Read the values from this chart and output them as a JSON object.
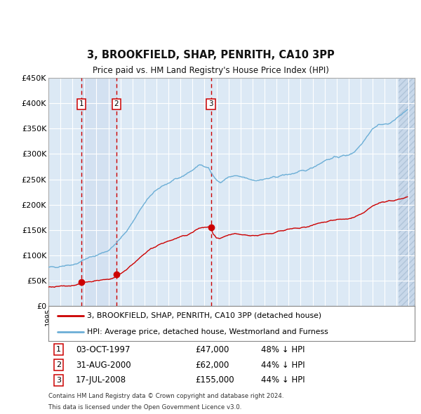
{
  "title": "3, BROOKFIELD, SHAP, PENRITH, CA10 3PP",
  "subtitle": "Price paid vs. HM Land Registry's House Price Index (HPI)",
  "sales": [
    {
      "date_dec": 1997.752,
      "price": 47000,
      "label": "1"
    },
    {
      "date_dec": 2000.664,
      "price": 62000,
      "label": "2"
    },
    {
      "date_dec": 2008.539,
      "price": 155000,
      "label": "3"
    }
  ],
  "sale_annotations": [
    {
      "label": "1",
      "date": "03-OCT-1997",
      "price": "£47,000",
      "note": "48% ↓ HPI"
    },
    {
      "label": "2",
      "date": "31-AUG-2000",
      "price": "£62,000",
      "note": "44% ↓ HPI"
    },
    {
      "label": "3",
      "date": "17-JUL-2008",
      "price": "£155,000",
      "note": "44% ↓ HPI"
    }
  ],
  "legend_line1": "3, BROOKFIELD, SHAP, PENRITH, CA10 3PP (detached house)",
  "legend_line2": "HPI: Average price, detached house, Westmorland and Furness",
  "footer1": "Contains HM Land Registry data © Crown copyright and database right 2024.",
  "footer2": "This data is licensed under the Open Government Licence v3.0.",
  "hpi_color": "#6baed6",
  "sale_color": "#cc0000",
  "background_color": "#ffffff",
  "plot_bg_color": "#dce9f5",
  "grid_color": "#ffffff",
  "ylim": [
    0,
    450000
  ],
  "yticks": [
    0,
    50000,
    100000,
    150000,
    200000,
    250000,
    300000,
    350000,
    400000,
    450000
  ],
  "xlim_start": 1995.0,
  "xlim_end": 2025.5,
  "hatch_start": 2024.17,
  "shade_start": 1997.752,
  "shade_end": 2000.664
}
